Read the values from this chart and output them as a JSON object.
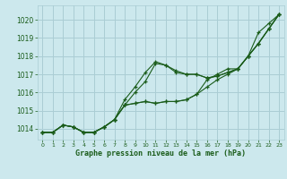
{
  "bg_color": "#cce8ed",
  "grid_color": "#aacdd4",
  "line_color": "#1a5c1a",
  "xlabel": "Graphe pression niveau de la mer (hPa)",
  "ylim": [
    1013.4,
    1020.8
  ],
  "xlim": [
    -0.5,
    23.5
  ],
  "yticks": [
    1014,
    1015,
    1016,
    1017,
    1018,
    1019,
    1020
  ],
  "series": [
    [
      1013.8,
      1013.8,
      1014.2,
      1014.1,
      1013.8,
      1013.8,
      1014.1,
      1014.5,
      1015.3,
      1015.4,
      1015.5,
      1015.4,
      1015.5,
      1015.5,
      1015.6,
      1015.9,
      1016.3,
      1016.7,
      1017.0,
      1017.3,
      1018.0,
      1018.7,
      1019.5,
      1020.3
    ],
    [
      1013.8,
      1013.8,
      1014.2,
      1014.1,
      1013.8,
      1013.8,
      1014.1,
      1014.5,
      1015.3,
      1016.0,
      1016.6,
      1017.6,
      1017.5,
      1017.1,
      1017.0,
      1017.0,
      1016.8,
      1016.9,
      1017.1,
      1017.3,
      1018.0,
      1018.7,
      1019.5,
      1020.3
    ],
    [
      1013.8,
      1013.8,
      1014.2,
      1014.1,
      1013.8,
      1013.8,
      1014.1,
      1014.5,
      1015.6,
      1016.3,
      1017.1,
      1017.7,
      1017.5,
      1017.2,
      1017.0,
      1017.0,
      1016.8,
      1016.9,
      1017.1,
      1017.3,
      1018.0,
      1018.7,
      1019.5,
      1020.3
    ],
    [
      1013.8,
      1013.8,
      1014.2,
      1014.1,
      1013.8,
      1013.8,
      1014.1,
      1014.5,
      1015.3,
      1015.4,
      1015.5,
      1015.4,
      1015.5,
      1015.5,
      1015.6,
      1015.9,
      1016.7,
      1017.0,
      1017.3,
      1017.3,
      1018.0,
      1019.3,
      1019.8,
      1020.3
    ]
  ]
}
